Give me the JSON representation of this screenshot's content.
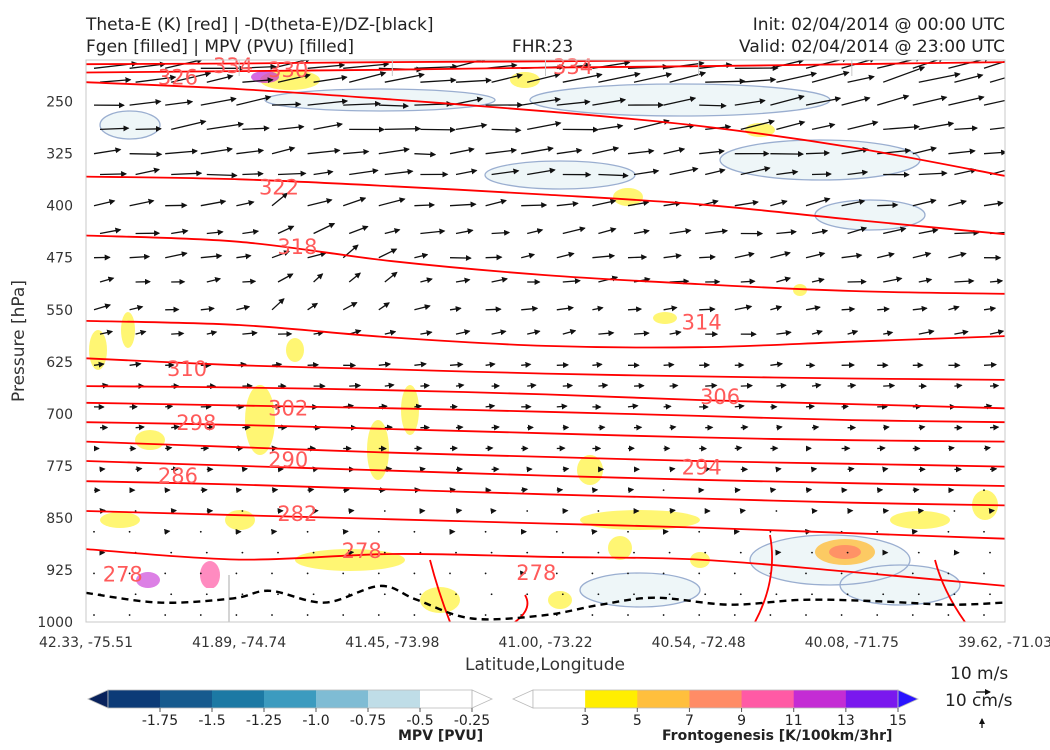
{
  "header": {
    "line1_left": "Theta-E (K) [red] | -D(theta-E)/DZ-[black]",
    "line2_left": "Fgen [filled] | MPV (PVU) [filled]",
    "fhr": "FHR:23",
    "init": "Init: 02/04/2014 @ 00:00 UTC",
    "valid": "Valid: 02/04/2014 @ 23:00 UTC"
  },
  "colors": {
    "theta_e": "#ff0000",
    "theta_e_label": "#ff5a5a",
    "stability": "#000000",
    "mpv_contour": "#9aaed0",
    "mpv_fill_light": "#eef6f8",
    "wind": "#111111"
  },
  "chart_data": {
    "type": "cross-section",
    "xlabel": "Latitude,Longitude",
    "ylabel": "Pressure [hPa]",
    "x_ticks": [
      "42.33, -75.51",
      "41.89, -74.74",
      "41.45, -73.98",
      "41.00, -73.22",
      "40.54, -72.48",
      "40.08, -71.75",
      "39.62, -71.03"
    ],
    "y_ticks": [
      250,
      325,
      400,
      475,
      550,
      625,
      700,
      775,
      850,
      925,
      1000
    ],
    "ylim": [
      1000,
      190
    ],
    "grid": false,
    "theta_e_contours": [
      {
        "value": 334,
        "p": [
          196,
          195,
          193,
          192,
          190,
          188,
          186
        ]
      },
      {
        "value": 330,
        "p": [
          208,
          206,
          204,
          201,
          199,
          196,
          193
        ]
      },
      {
        "value": 326,
        "p": [
          222,
          232,
          247,
          264,
          285,
          316,
          357
        ]
      },
      {
        "value": 322,
        "p": [
          358,
          362,
          372,
          384,
          398,
          420,
          441
        ]
      },
      {
        "value": 318,
        "p": [
          443,
          452,
          480,
          500,
          513,
          523,
          527
        ]
      },
      {
        "value": 314,
        "p": [
          566,
          572,
          590,
          602,
          604,
          596,
          588
        ]
      },
      {
        "value": 310,
        "p": [
          620,
          630,
          636,
          642,
          646,
          649,
          651
        ]
      },
      {
        "value": 306,
        "p": [
          660,
          662,
          666,
          672,
          680,
          686,
          692
        ]
      },
      {
        "value": 302,
        "p": [
          684,
          688,
          692,
          697,
          703,
          709,
          712
        ]
      },
      {
        "value": 298,
        "p": [
          712,
          716,
          722,
          728,
          734,
          738,
          740
        ]
      },
      {
        "value": 294,
        "p": [
          740,
          748,
          756,
          762,
          768,
          772,
          776
        ]
      },
      {
        "value": 290,
        "p": [
          768,
          775,
          782,
          789,
          795,
          800,
          804
        ]
      },
      {
        "value": 286,
        "p": [
          797,
          802,
          809,
          816,
          822,
          828,
          832
        ]
      },
      {
        "value": 282,
        "p": [
          840,
          846,
          852,
          858,
          864,
          872,
          880
        ]
      },
      {
        "value": 278,
        "p": [
          895,
          910,
          902,
          906,
          910,
          928,
          948
        ]
      }
    ],
    "contour_labels": [
      {
        "value": "334",
        "x": 0.16,
        "p": 197
      },
      {
        "value": "330",
        "x": 0.22,
        "p": 203
      },
      {
        "value": "334",
        "x": 0.53,
        "p": 199
      },
      {
        "value": "326",
        "x": 0.1,
        "p": 214
      },
      {
        "value": "322",
        "x": 0.21,
        "p": 372
      },
      {
        "value": "318",
        "x": 0.23,
        "p": 458
      },
      {
        "value": "314",
        "x": 0.67,
        "p": 567
      },
      {
        "value": "310",
        "x": 0.11,
        "p": 634
      },
      {
        "value": "306",
        "x": 0.69,
        "p": 674
      },
      {
        "value": "302",
        "x": 0.22,
        "p": 691
      },
      {
        "value": "298",
        "x": 0.12,
        "p": 712
      },
      {
        "value": "290",
        "x": 0.22,
        "p": 765
      },
      {
        "value": "294",
        "x": 0.67,
        "p": 776
      },
      {
        "value": "286",
        "x": 0.1,
        "p": 788
      },
      {
        "value": "282",
        "x": 0.23,
        "p": 843
      },
      {
        "value": "278",
        "x": 0.3,
        "p": 896
      },
      {
        "value": "278",
        "x": 0.49,
        "p": 928
      },
      {
        "value": "278",
        "x": 0.04,
        "p": 930
      }
    ],
    "stability_contour": {
      "x": [
        0.0,
        0.08,
        0.16,
        0.2,
        0.26,
        0.32,
        0.36,
        0.42,
        0.5,
        0.56,
        0.62,
        0.7,
        0.78,
        0.86,
        0.94,
        1.0
      ],
      "p": [
        958,
        972,
        966,
        955,
        972,
        948,
        968,
        995,
        990,
        975,
        965,
        975,
        968,
        970,
        975,
        972
      ]
    },
    "mpv_colorbar": {
      "title": "MPV [PVU]",
      "ticks": [
        "-1.75",
        "-1.5",
        "-1.25",
        "-1.0",
        "-0.75",
        "-0.5",
        "-0.25"
      ],
      "colors": [
        "#08225c",
        "#0c3b77",
        "#165a8e",
        "#1c79a4",
        "#3c9bbf",
        "#7fbcd4",
        "#bfdde7",
        "#ffffff"
      ]
    },
    "fgen_colorbar": {
      "title": "Frontogenesis [K/100km/3hr]",
      "ticks": [
        "3",
        "5",
        "7",
        "9",
        "11",
        "13",
        "15"
      ],
      "colors": [
        "#ffffff",
        "#ffee00",
        "#ffbf3d",
        "#ff8c66",
        "#ff5aa5",
        "#c42cd4",
        "#7a18ee",
        "#2a14ff"
      ]
    },
    "vector_legend": {
      "horizontal": "10 m/s",
      "vertical": "10 cm/s"
    }
  }
}
